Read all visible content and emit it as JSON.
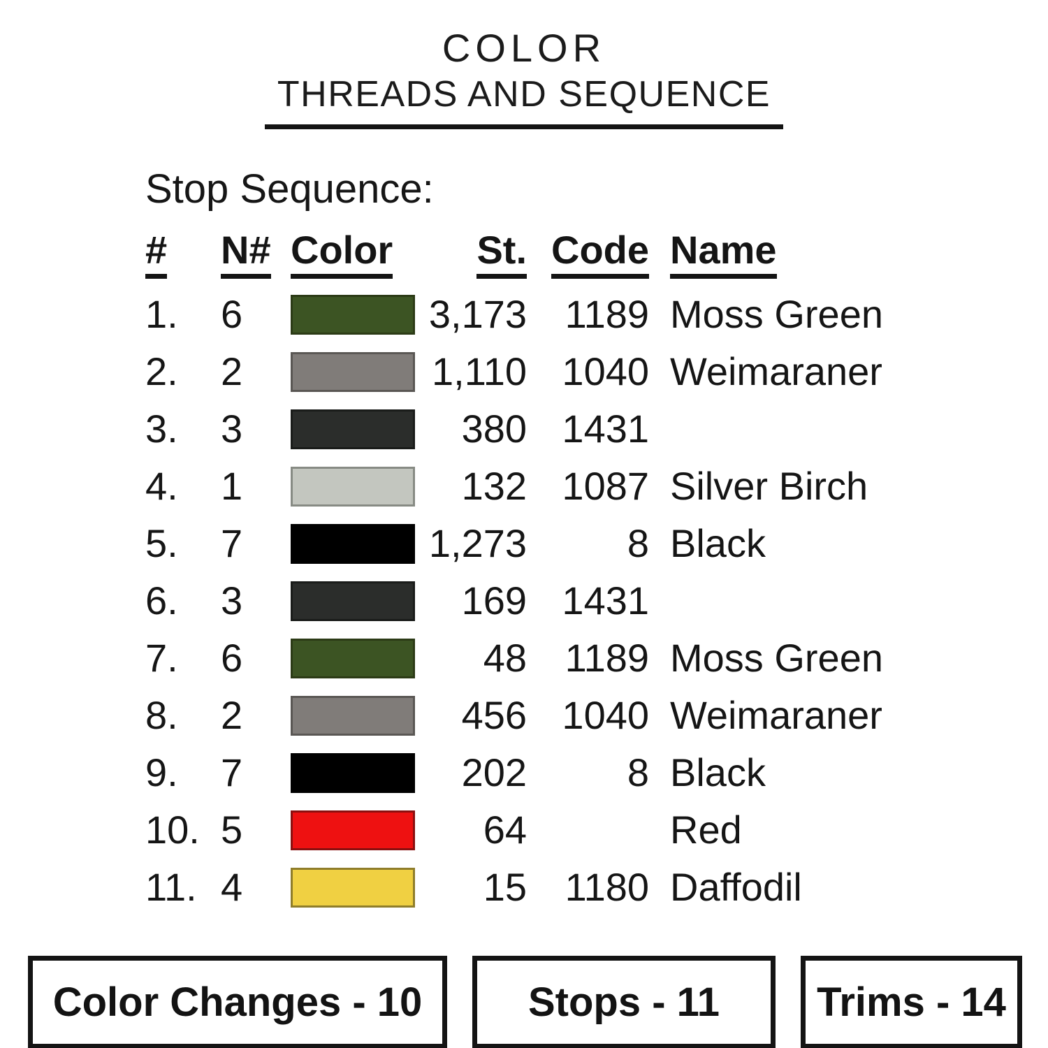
{
  "title": {
    "main": "COLOR",
    "subtitle": "THREADS AND SEQUENCE"
  },
  "section": {
    "heading": "Stop Sequence:"
  },
  "table": {
    "headers": {
      "num": "#",
      "needle": "N#",
      "color": "Color",
      "stitches": "St.",
      "code": "Code",
      "name": "Name"
    },
    "rows": [
      {
        "num": "1.",
        "needle": "6",
        "st": "3,173",
        "code": "1189",
        "name": "Moss Green",
        "swatch": {
          "fill": "#3c5423",
          "border": "#2c3b16"
        }
      },
      {
        "num": "2.",
        "needle": "2",
        "st": "1,110",
        "code": "1040",
        "name": "Weimaraner",
        "swatch": {
          "fill": "#807c79",
          "border": "#5a5754"
        }
      },
      {
        "num": "3.",
        "needle": "3",
        "st": "380",
        "code": "1431",
        "name": "",
        "swatch": {
          "fill": "#2b2d2b",
          "border": "#1a1c1a"
        }
      },
      {
        "num": "4.",
        "needle": "1",
        "st": "132",
        "code": "1087",
        "name": "Silver Birch",
        "swatch": {
          "fill": "#c3c6bf",
          "border": "#878b84"
        }
      },
      {
        "num": "5.",
        "needle": "7",
        "st": "1,273",
        "code": "8",
        "name": "Black",
        "swatch": {
          "fill": "#000000",
          "border": "#000000"
        }
      },
      {
        "num": "6.",
        "needle": "3",
        "st": "169",
        "code": "1431",
        "name": "",
        "swatch": {
          "fill": "#2b2d2b",
          "border": "#1a1c1a"
        }
      },
      {
        "num": "7.",
        "needle": "6",
        "st": "48",
        "code": "1189",
        "name": "Moss Green",
        "swatch": {
          "fill": "#3c5423",
          "border": "#2c3b16"
        }
      },
      {
        "num": "8.",
        "needle": "2",
        "st": "456",
        "code": "1040",
        "name": "Weimaraner",
        "swatch": {
          "fill": "#807c79",
          "border": "#5a5754"
        }
      },
      {
        "num": "9.",
        "needle": "7",
        "st": "202",
        "code": "8",
        "name": "Black",
        "swatch": {
          "fill": "#000000",
          "border": "#000000"
        }
      },
      {
        "num": "10.",
        "needle": "5",
        "st": "64",
        "code": "",
        "name": "Red",
        "swatch": {
          "fill": "#ee1111",
          "border": "#8b1010"
        }
      },
      {
        "num": "11.",
        "needle": "4",
        "st": "15",
        "code": "1180",
        "name": "Daffodil",
        "swatch": {
          "fill": "#f0d042",
          "border": "#8f7d2b"
        }
      }
    ]
  },
  "footer": {
    "color_changes": "Color Changes - 10",
    "stops": "Stops - 11",
    "trims": "Trims - 14"
  }
}
